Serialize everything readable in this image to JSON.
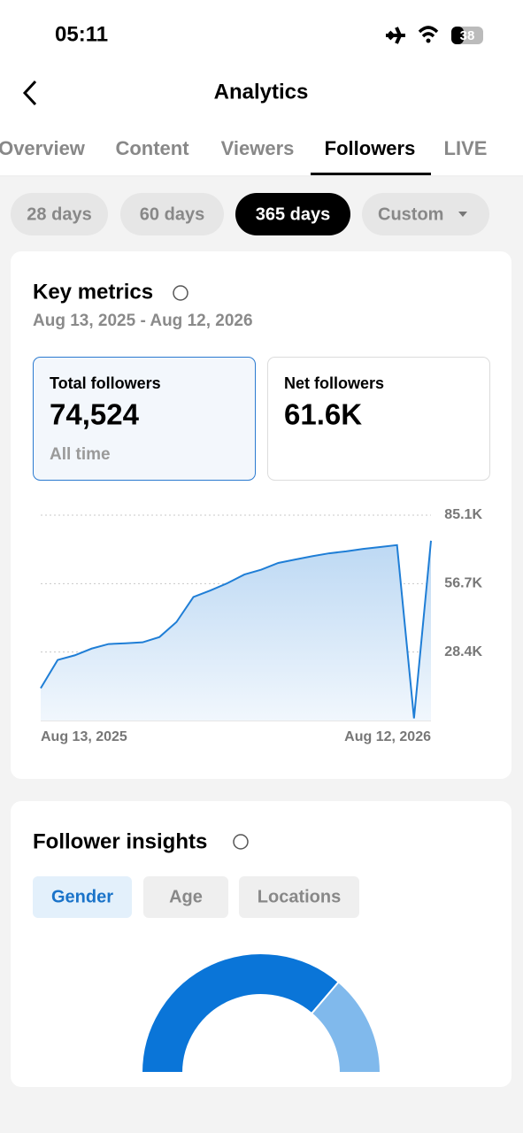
{
  "status": {
    "time": "05:11",
    "battery": "38"
  },
  "header": {
    "title": "Analytics"
  },
  "tabs": [
    "Overview",
    "Content",
    "Viewers",
    "Followers",
    "LIVE"
  ],
  "ranges": [
    "28 days",
    "60 days",
    "365 days",
    "Custom"
  ],
  "key_metrics": {
    "title": "Key metrics",
    "date_range": "Aug 13, 2025 - Aug 12, 2026",
    "cards": [
      {
        "label": "Total followers",
        "value": "74,524",
        "note": "All time"
      },
      {
        "label": "Net followers",
        "value": "61.6K"
      }
    ]
  },
  "insights": {
    "title": "Follower insights",
    "tabs": [
      "Gender",
      "Age",
      "Locations"
    ]
  },
  "chart_data": [
    {
      "type": "line",
      "color": "#1f7ed6",
      "categories": [
        "Aug 13, 2025",
        null,
        null,
        null,
        null,
        null,
        null,
        null,
        null,
        null,
        null,
        null,
        null,
        null,
        null,
        null,
        null,
        null,
        null,
        null,
        null,
        null,
        null,
        "Aug 12, 2026"
      ],
      "values": [
        13400,
        25100,
        27000,
        29800,
        31700,
        32000,
        32400,
        34600,
        40800,
        51200,
        53900,
        56900,
        60500,
        62500,
        65300,
        66700,
        68100,
        69300,
        70100,
        71100,
        71900,
        72700,
        900,
        74500
      ],
      "ylim": [
        0,
        85100
      ],
      "yticks": [
        {
          "value": 28400,
          "label": "28.4K"
        },
        {
          "value": 56700,
          "label": "56.7K"
        },
        {
          "value": 85100,
          "label": "85.1K"
        }
      ],
      "grid": true
    },
    {
      "type": "pie",
      "values": [
        72.5,
        27.5
      ],
      "colors": [
        "#0a75d8",
        "#80b9ec"
      ]
    }
  ]
}
